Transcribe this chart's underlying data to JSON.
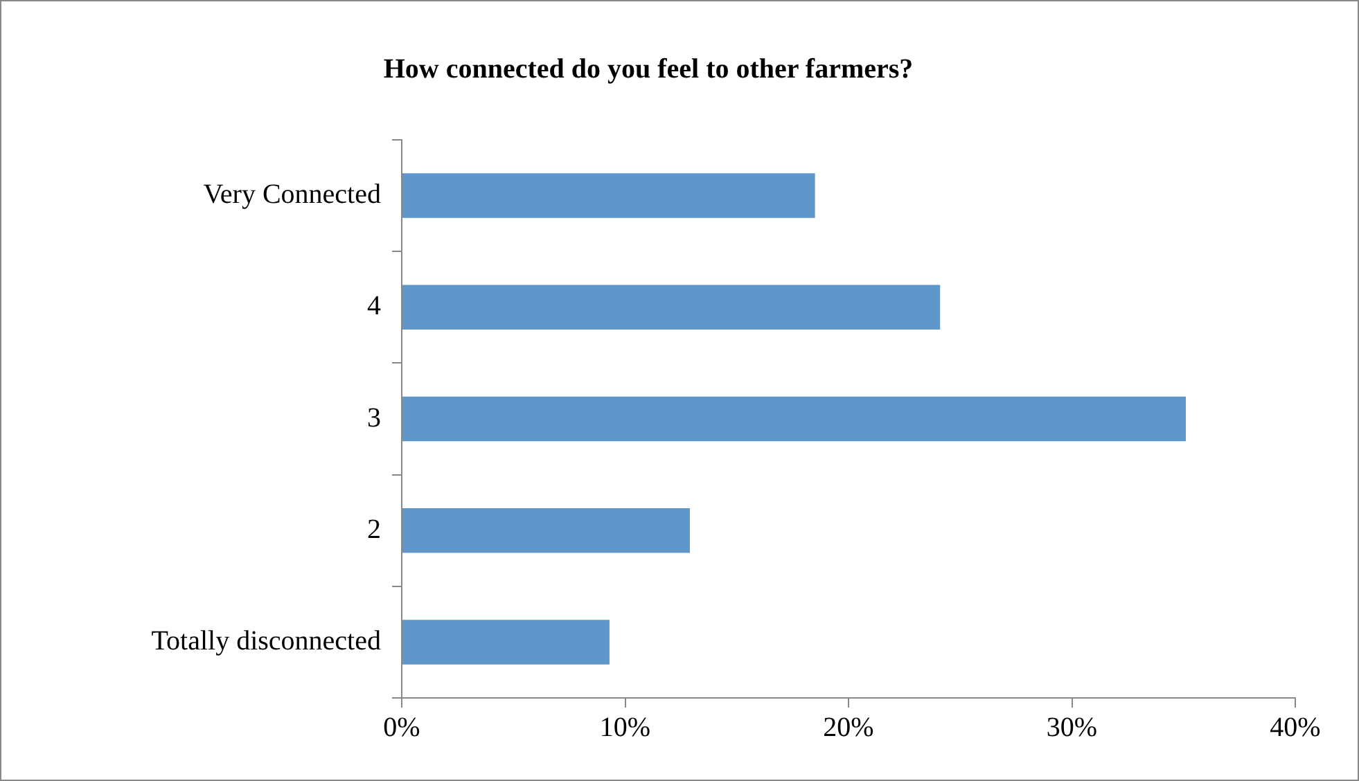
{
  "chart_data": {
    "type": "bar",
    "orientation": "horizontal",
    "title": "How connected do you feel to other farmers?",
    "categories": [
      "Very Connected",
      "4",
      "3",
      "2",
      "Totally disconnected"
    ],
    "values": [
      18.5,
      24.1,
      35.1,
      12.9,
      9.3
    ],
    "color": "#5f97cb",
    "xlim": [
      0,
      40
    ],
    "xticks": [
      {
        "value": 0,
        "label": "0%"
      },
      {
        "value": 10,
        "label": "10%"
      },
      {
        "value": 20,
        "label": "20%"
      },
      {
        "value": 30,
        "label": "30%"
      },
      {
        "value": 40,
        "label": "40%"
      }
    ]
  }
}
